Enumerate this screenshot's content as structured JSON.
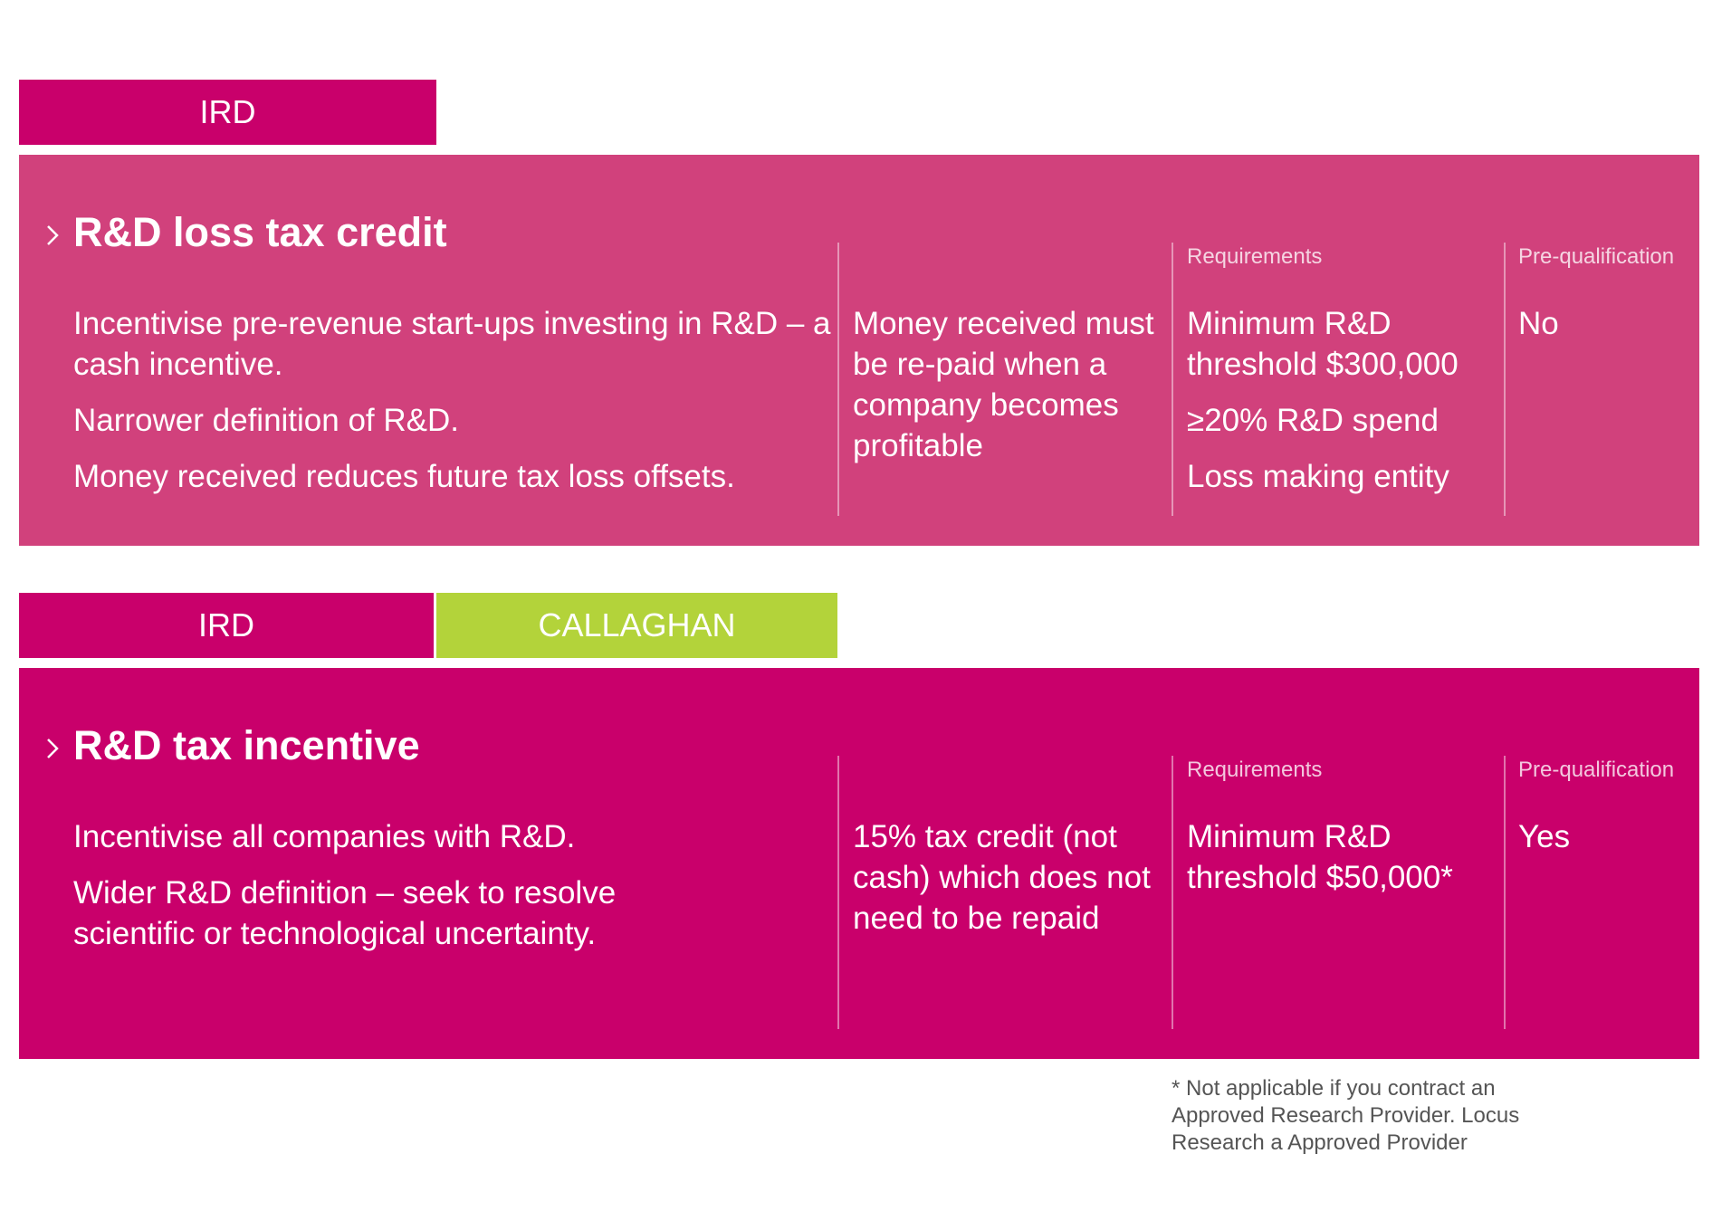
{
  "section1": {
    "tabs": [
      {
        "label": "IRD"
      }
    ],
    "title": "R&D loss tax credit",
    "description": [
      "Incentivise pre-revenue start-ups investing in R&D – a cash incentive.",
      "Narrower definition of R&D.",
      "Money received reduces future tax loss offsets."
    ],
    "repayment": "Money received must be re-paid when a company becomes profitable",
    "requirements_label": "Requirements",
    "requirements": [
      "Minimum R&D threshold $300,000",
      "≥20% R&D spend",
      "Loss making entity"
    ],
    "prequal_label": "Pre-qualification",
    "prequal_value": "No"
  },
  "section2": {
    "tabs": [
      {
        "label": "IRD"
      },
      {
        "label": "CALLAGHAN"
      }
    ],
    "title": "R&D tax incentive",
    "description": [
      "Incentivise all companies with R&D.",
      "Wider R&D definition – seek to resolve scientific or technological uncertainty."
    ],
    "repayment": "15% tax credit (not cash) which does not need to be repaid",
    "requirements_label": "Requirements",
    "requirements": [
      "Minimum R&D threshold $50,000*"
    ],
    "prequal_label": "Pre-qualification",
    "prequal_value": "Yes"
  },
  "footnote": "* Not applicable if you contract an Approved Research Provider. Locus Research a Approved Provider",
  "colors": {
    "magenta": "#c9006b",
    "magenta_light": "#d1417c",
    "lime": "#b3d33a"
  }
}
